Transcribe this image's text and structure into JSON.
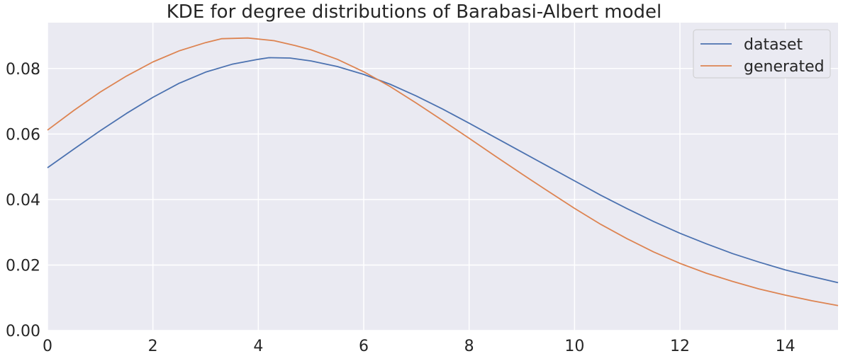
{
  "chart_data": {
    "type": "line",
    "title": "KDE for degree distributions of Barabasi-Albert model",
    "xlabel": "",
    "ylabel": "",
    "xlim": [
      0,
      15
    ],
    "ylim": [
      0,
      0.094
    ],
    "x_ticks": [
      0,
      2,
      4,
      6,
      8,
      10,
      12,
      14
    ],
    "x_tick_labels": [
      "0",
      "2",
      "4",
      "6",
      "8",
      "10",
      "12",
      "14"
    ],
    "y_ticks": [
      0.0,
      0.02,
      0.04,
      0.06,
      0.08
    ],
    "y_tick_labels": [
      "0.00",
      "0.02",
      "0.04",
      "0.06",
      "0.08"
    ],
    "grid": true,
    "legend_position": "top-right",
    "style": {
      "plot_background": "#eaeaf2",
      "grid_color": "#ffffff",
      "text_color": "#262626"
    },
    "series": [
      {
        "name": "dataset",
        "color": "#4c72b0",
        "x": [
          0,
          0.5,
          1.0,
          1.5,
          2.0,
          2.5,
          3.0,
          3.5,
          4.0,
          4.2,
          4.6,
          5.0,
          5.5,
          6.0,
          6.5,
          7.0,
          7.5,
          8.0,
          8.5,
          9.0,
          9.5,
          10.0,
          10.5,
          11.0,
          11.5,
          12.0,
          12.5,
          13.0,
          13.5,
          14.0,
          14.5,
          15.0
        ],
        "y": [
          0.0497,
          0.0554,
          0.061,
          0.0663,
          0.0712,
          0.0755,
          0.0789,
          0.0813,
          0.0828,
          0.0833,
          0.0832,
          0.0823,
          0.0806,
          0.0782,
          0.0752,
          0.0716,
          0.0676,
          0.0633,
          0.0589,
          0.0545,
          0.0501,
          0.0457,
          0.0413,
          0.0372,
          0.0333,
          0.0297,
          0.0265,
          0.0235,
          0.0209,
          0.0185,
          0.0165,
          0.0146
        ]
      },
      {
        "name": "generated",
        "color": "#dd8452",
        "x": [
          0,
          0.5,
          1.0,
          1.5,
          2.0,
          2.5,
          3.0,
          3.3,
          3.8,
          4.3,
          4.7,
          5.0,
          5.5,
          6.0,
          6.5,
          7.0,
          7.5,
          8.0,
          8.5,
          9.0,
          9.5,
          10.0,
          10.5,
          11.0,
          11.5,
          12.0,
          12.5,
          13.0,
          13.5,
          14.0,
          14.5,
          15.0
        ],
        "y": [
          0.0612,
          0.0672,
          0.0728,
          0.0777,
          0.082,
          0.0854,
          0.0879,
          0.0891,
          0.0893,
          0.0885,
          0.087,
          0.0857,
          0.0828,
          0.079,
          0.0745,
          0.0694,
          0.0641,
          0.0587,
          0.0532,
          0.0478,
          0.0425,
          0.0373,
          0.0324,
          0.028,
          0.024,
          0.0205,
          0.0175,
          0.015,
          0.0127,
          0.0108,
          0.0091,
          0.0076
        ]
      }
    ]
  }
}
